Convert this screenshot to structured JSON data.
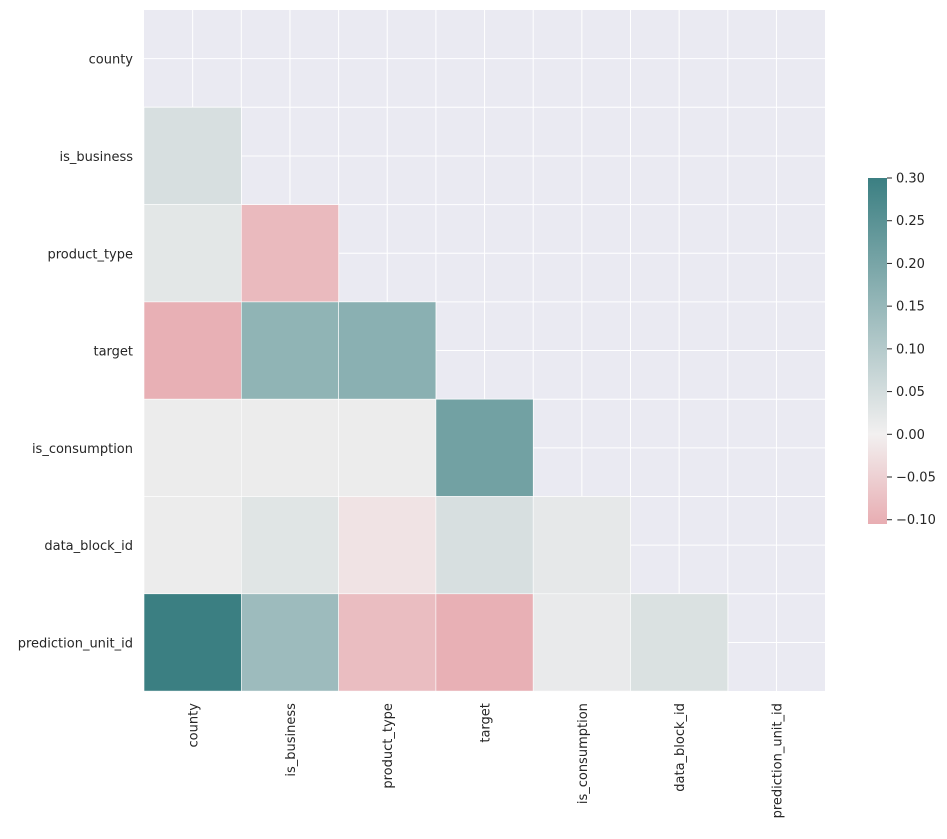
{
  "chart_data": {
    "type": "heatmap",
    "variables": [
      "county",
      "is_business",
      "product_type",
      "target",
      "is_consumption",
      "data_block_id",
      "prediction_unit_id"
    ],
    "mask": "upper-triangle-and-diagonal",
    "grid": true,
    "colormap": {
      "negative_color": "#e8adb2",
      "center_color": "#f2f0f0",
      "positive_color": "#3b7f82",
      "vmin": -0.105,
      "center": 0,
      "vmax": 0.3
    },
    "lower_triangle": [
      {
        "row": "is_business",
        "col": "county",
        "value": 0.045
      },
      {
        "row": "product_type",
        "col": "county",
        "value": 0.025
      },
      {
        "row": "product_type",
        "col": "is_business",
        "value": -0.085
      },
      {
        "row": "target",
        "col": "county",
        "value": -0.1
      },
      {
        "row": "target",
        "col": "is_business",
        "value": 0.16
      },
      {
        "row": "target",
        "col": "product_type",
        "value": 0.17
      },
      {
        "row": "is_consumption",
        "col": "county",
        "value": 0.01
      },
      {
        "row": "is_consumption",
        "col": "is_business",
        "value": 0.01
      },
      {
        "row": "is_consumption",
        "col": "product_type",
        "value": 0.01
      },
      {
        "row": "is_consumption",
        "col": "target",
        "value": 0.21
      },
      {
        "row": "data_block_id",
        "col": "county",
        "value": 0.01
      },
      {
        "row": "data_block_id",
        "col": "is_business",
        "value": 0.03
      },
      {
        "row": "data_block_id",
        "col": "product_type",
        "value": -0.02
      },
      {
        "row": "data_block_id",
        "col": "target",
        "value": 0.045
      },
      {
        "row": "data_block_id",
        "col": "is_consumption",
        "value": 0.02
      },
      {
        "row": "prediction_unit_id",
        "col": "county",
        "value": 0.3
      },
      {
        "row": "prediction_unit_id",
        "col": "is_business",
        "value": 0.14
      },
      {
        "row": "prediction_unit_id",
        "col": "product_type",
        "value": -0.08
      },
      {
        "row": "prediction_unit_id",
        "col": "target",
        "value": -0.1
      },
      {
        "row": "prediction_unit_id",
        "col": "is_consumption",
        "value": 0.015
      },
      {
        "row": "prediction_unit_id",
        "col": "data_block_id",
        "value": 0.04
      }
    ],
    "colorbar": {
      "ticks": [
        0.3,
        0.25,
        0.2,
        0.15,
        0.1,
        0.05,
        0.0,
        -0.05,
        -0.1
      ],
      "tick_labels": [
        "0.30",
        "0.25",
        "0.20",
        "0.15",
        "0.10",
        "0.05",
        "0.00",
        "−0.05",
        "−0.10"
      ]
    },
    "title": "",
    "xlabel": "",
    "ylabel": ""
  }
}
